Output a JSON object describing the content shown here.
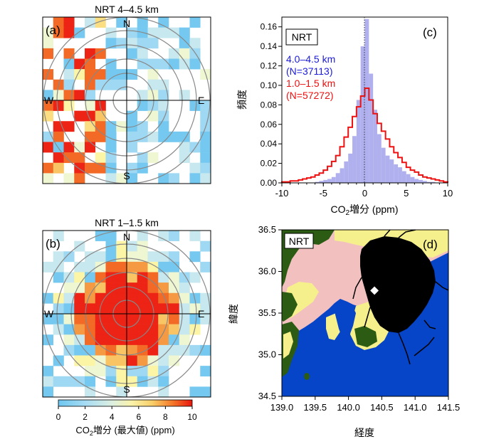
{
  "chart_data": [
    {
      "id": "a",
      "type": "heatmap",
      "panel_label": "(a)",
      "title": "NRT 4–4.5 km",
      "directions": {
        "n": "N",
        "s": "S",
        "e": "E",
        "w": "W"
      }
    },
    {
      "id": "b",
      "type": "heatmap",
      "panel_label": "(b)",
      "title": "NRT 1–1.5 km",
      "directions": {
        "n": "N",
        "s": "S",
        "e": "E",
        "w": "W"
      }
    },
    {
      "id": "c",
      "type": "bar",
      "panel_label": "(c)",
      "badge": "NRT",
      "xlabel_main": "CO",
      "xlabel_sub": "2",
      "xlabel_rest": "増分 (ppm)",
      "ylabel": "頻度",
      "xlim": [
        -10,
        10
      ],
      "ylim": [
        0,
        0.17
      ],
      "xticks": [
        "-10",
        "-5",
        "0",
        "5",
        "10"
      ],
      "yticks": [
        "0.00",
        "0.02",
        "0.04",
        "0.06",
        "0.08",
        "0.10",
        "0.12",
        "0.14",
        "0.16"
      ],
      "bin_width": 0.5,
      "series": [
        {
          "name": "4.0–4.5 km",
          "count_label": "(N=37113)",
          "color": "#b0b0ee",
          "x": [
            -10,
            -9.5,
            -9,
            -8.5,
            -8,
            -7.5,
            -7,
            -6.5,
            -6,
            -5.5,
            -5,
            -4.5,
            -4,
            -3.5,
            -3,
            -2.5,
            -2,
            -1.5,
            -1,
            -0.5,
            0,
            0.5,
            1,
            1.5,
            2,
            2.5,
            3,
            3.5,
            4,
            4.5,
            5,
            5.5,
            6,
            6.5,
            7,
            7.5,
            8,
            8.5,
            9,
            9.5
          ],
          "values": [
            0.0,
            0.0,
            0.0,
            0.0,
            0.0,
            0.0,
            0.0,
            0.0,
            0.001,
            0.002,
            0.003,
            0.004,
            0.006,
            0.01,
            0.015,
            0.022,
            0.03,
            0.048,
            0.085,
            0.14,
            0.168,
            0.112,
            0.075,
            0.05,
            0.036,
            0.028,
            0.024,
            0.019,
            0.016,
            0.012,
            0.009,
            0.006,
            0.004,
            0.003,
            0.002,
            0.001,
            0.001,
            0.0,
            0.0,
            0.0
          ]
        },
        {
          "name": "1.0–1.5 km",
          "count_label": "(N=57272)",
          "color": "#ee1111",
          "x": [
            -10,
            -9.5,
            -9,
            -8.5,
            -8,
            -7.5,
            -7,
            -6.5,
            -6,
            -5.5,
            -5,
            -4.5,
            -4,
            -3.5,
            -3,
            -2.5,
            -2,
            -1.5,
            -1,
            -0.5,
            0,
            0.5,
            1,
            1.5,
            2,
            2.5,
            3,
            3.5,
            4,
            4.5,
            5,
            5.5,
            6,
            6.5,
            7,
            7.5,
            8,
            8.5,
            9,
            9.5
          ],
          "values": [
            0.001,
            0.001,
            0.002,
            0.002,
            0.003,
            0.004,
            0.005,
            0.006,
            0.008,
            0.01,
            0.013,
            0.017,
            0.022,
            0.028,
            0.037,
            0.047,
            0.057,
            0.068,
            0.078,
            0.089,
            0.097,
            0.085,
            0.071,
            0.061,
            0.053,
            0.045,
            0.037,
            0.031,
            0.026,
            0.021,
            0.016,
            0.013,
            0.011,
            0.008,
            0.006,
            0.005,
            0.004,
            0.003,
            0.002,
            0.001
          ]
        }
      ]
    },
    {
      "id": "d",
      "type": "map",
      "panel_label": "(d)",
      "badge": "NRT",
      "xlabel": "経度",
      "ylabel": "緯度",
      "xlim": [
        139.0,
        141.5
      ],
      "ylim": [
        34.5,
        36.5
      ],
      "xticks": [
        "139.0",
        "139.5",
        "140.0",
        "140.5",
        "141.0",
        "141.5"
      ],
      "yticks": [
        "34.5",
        "35.0",
        "35.5",
        "36.0",
        "36.5"
      ],
      "airport": {
        "lon": 140.39,
        "lat": 35.77
      }
    }
  ],
  "colorbar": {
    "label_main": "CO",
    "label_sub": "2",
    "label_rest": "増分 (最大値) (ppm)",
    "ticks": [
      "0",
      "2",
      "4",
      "6",
      "8",
      "10"
    ],
    "range": [
      0,
      10
    ]
  },
  "colors": {
    "land_green": "#2c5b14",
    "land_pink": "#f3c0c0",
    "land_yellow": "#f6f08c",
    "sea": "#0644c8"
  }
}
